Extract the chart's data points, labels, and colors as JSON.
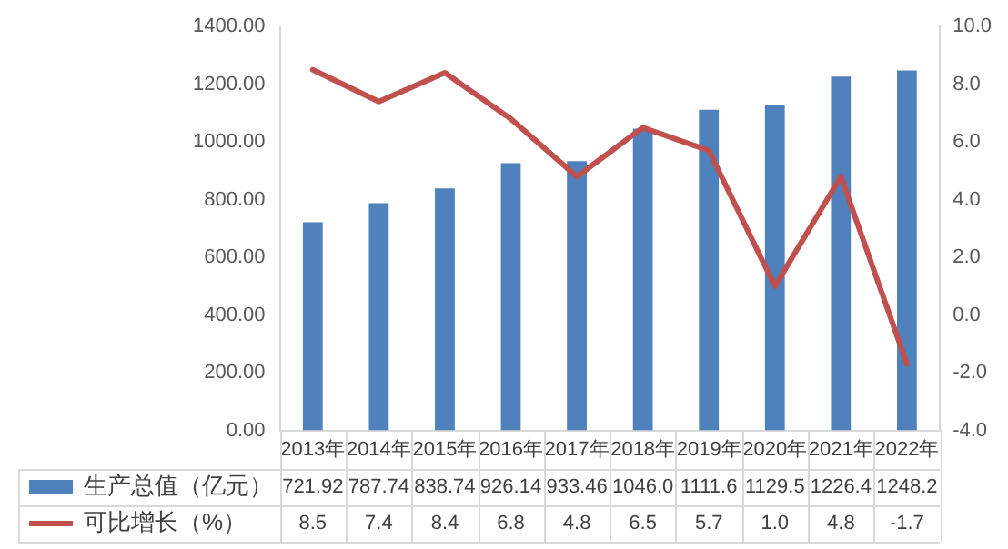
{
  "chart_data": {
    "type": "bar",
    "categories": [
      "2013年",
      "2014年",
      "2015年",
      "2016年",
      "2017年",
      "2018年",
      "2019年",
      "2020年",
      "2021年",
      "2022年"
    ],
    "series": [
      {
        "name": "生产总值（亿元）",
        "color": "#4f81bd",
        "values": [
          721.92,
          787.74,
          838.74,
          926.14,
          933.46,
          1046.0,
          1111.6,
          1129.5,
          1226.4,
          1248.2
        ],
        "value_labels": [
          "721.92",
          "787.74",
          "838.74",
          "926.14",
          "933.46",
          "1046.0",
          "1111.6",
          "1129.5",
          "1226.4",
          "1248.2"
        ]
      },
      {
        "name": "可比增长（%）",
        "type": "line",
        "axis": "y2",
        "color": "#c0504d",
        "values": [
          8.5,
          7.4,
          8.4,
          6.8,
          4.8,
          6.5,
          5.7,
          1.0,
          4.8,
          -1.7
        ],
        "value_labels": [
          "8.5",
          "7.4",
          "8.4",
          "6.8",
          "4.8",
          "6.5",
          "5.7",
          "1.0",
          "4.8",
          "-1.7"
        ]
      }
    ],
    "ylim": [
      0,
      1400
    ],
    "yticks": [
      {
        "value": 0,
        "label": "0.00"
      },
      {
        "value": 200,
        "label": "200.00"
      },
      {
        "value": 400,
        "label": "400.00"
      },
      {
        "value": 600,
        "label": "600.00"
      },
      {
        "value": 800,
        "label": "800.00"
      },
      {
        "value": 1000,
        "label": "1000.00"
      },
      {
        "value": 1200,
        "label": "1200.00"
      },
      {
        "value": 1400,
        "label": "1400.00"
      }
    ],
    "y2lim": [
      -4,
      10
    ],
    "y2ticks": [
      {
        "value": -4,
        "label": "-4.0"
      },
      {
        "value": -2,
        "label": "-2.0"
      },
      {
        "value": 0,
        "label": "0.0"
      },
      {
        "value": 2,
        "label": "2.0"
      },
      {
        "value": 4,
        "label": "4.0"
      },
      {
        "value": 6,
        "label": "6.0"
      },
      {
        "value": 8,
        "label": "8.0"
      },
      {
        "value": 10,
        "label": "10.0"
      }
    ],
    "grid": false,
    "legend": "bottom",
    "marker": "none",
    "line_style": "solid",
    "data_labels": true
  }
}
